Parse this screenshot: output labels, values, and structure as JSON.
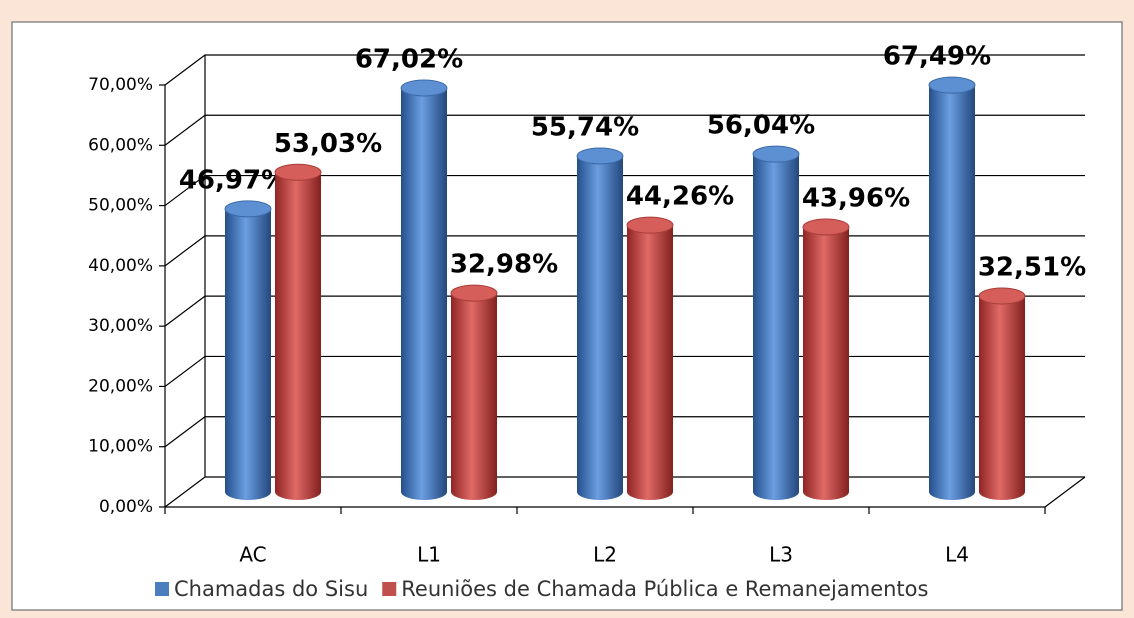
{
  "chart_data": {
    "type": "bar3d",
    "categories": [
      "AC",
      "L1",
      "L2",
      "L3",
      "L4"
    ],
    "series": [
      {
        "name": "Chamadas do Sisu",
        "color": "#4a7ebf",
        "values": [
          46.97,
          67.02,
          55.74,
          56.04,
          67.49
        ],
        "value_labels": [
          "46,97%",
          "67,02%",
          "55,74%",
          "56,04%",
          "67,49%"
        ]
      },
      {
        "name": "Reuniões de Chamada Pública e Remanejamentos",
        "color": "#c0504d",
        "values": [
          53.03,
          32.98,
          44.26,
          43.96,
          32.51
        ],
        "value_labels": [
          "53,03%",
          "32,98%",
          "44,26%",
          "43,96%",
          "32,51%"
        ]
      }
    ],
    "ylim": [
      0,
      70
    ],
    "yticks": [
      {
        "value": 0,
        "label": "0,00%"
      },
      {
        "value": 10,
        "label": "10,00%"
      },
      {
        "value": 20,
        "label": "20,00%"
      },
      {
        "value": 30,
        "label": "30,00%"
      },
      {
        "value": 40,
        "label": "40,00%"
      },
      {
        "value": 50,
        "label": "50,00%"
      },
      {
        "value": 60,
        "label": "60,00%"
      },
      {
        "value": 70,
        "label": "70,00%"
      }
    ],
    "grid": true,
    "legend": "bottom"
  }
}
